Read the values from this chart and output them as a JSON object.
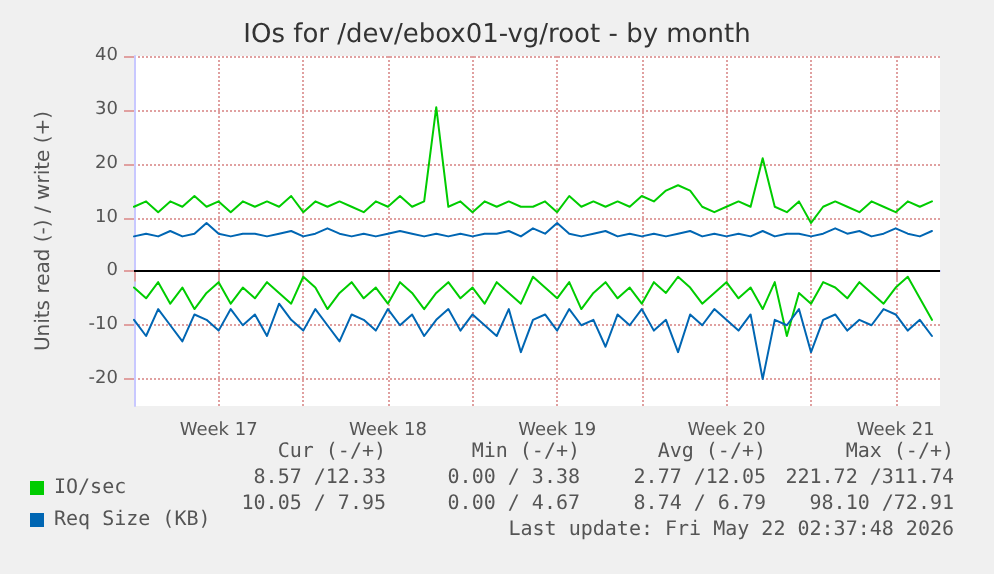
{
  "chart_data": {
    "type": "line",
    "title": "IOs for /dev/ebox01-vg/root - by month",
    "ylabel": "Units read (-) / write (+)",
    "x": [
      "2026-04-20T00:00",
      "2026-04-20T12:00",
      "2026-04-21T00:00",
      "2026-04-21T12:00",
      "2026-04-22T00:00",
      "2026-04-22T12:00",
      "2026-04-23T00:00",
      "2026-04-23T12:00",
      "2026-04-24T00:00",
      "2026-04-24T12:00",
      "2026-04-25T00:00",
      "2026-04-25T12:00",
      "2026-04-26T00:00",
      "2026-04-26T12:00",
      "2026-04-27T00:00",
      "2026-04-27T12:00",
      "2026-04-28T00:00",
      "2026-04-28T12:00",
      "2026-04-29T00:00",
      "2026-04-29T12:00",
      "2026-04-30T00:00",
      "2026-04-30T12:00",
      "2026-05-01T00:00",
      "2026-05-01T12:00",
      "2026-05-02T00:00",
      "2026-05-02T12:00",
      "2026-05-03T00:00",
      "2026-05-03T12:00",
      "2026-05-04T00:00",
      "2026-05-04T12:00",
      "2026-05-05T00:00",
      "2026-05-05T12:00",
      "2026-05-06T00:00",
      "2026-05-06T12:00",
      "2026-05-07T00:00",
      "2026-05-07T12:00",
      "2026-05-08T00:00",
      "2026-05-08T12:00",
      "2026-05-09T00:00",
      "2026-05-09T12:00",
      "2026-05-10T00:00",
      "2026-05-10T12:00",
      "2026-05-11T00:00",
      "2026-05-11T12:00",
      "2026-05-12T00:00",
      "2026-05-12T12:00",
      "2026-05-13T00:00",
      "2026-05-13T12:00",
      "2026-05-14T00:00",
      "2026-05-14T12:00",
      "2026-05-15T00:00",
      "2026-05-15T12:00",
      "2026-05-16T00:00",
      "2026-05-16T12:00",
      "2026-05-17T00:00",
      "2026-05-17T12:00",
      "2026-05-18T00:00",
      "2026-05-18T12:00",
      "2026-05-19T00:00",
      "2026-05-19T12:00",
      "2026-05-20T00:00",
      "2026-05-20T12:00",
      "2026-05-21T00:00",
      "2026-05-21T12:00",
      "2026-05-22T00:00",
      "2026-05-22T12:00",
      "2026-05-23T00:00"
    ],
    "series": [
      {
        "name": "IO/sec",
        "color": "#00cc00",
        "values": [
          12,
          13,
          11,
          13,
          12,
          14,
          12,
          13,
          11,
          13,
          12,
          13,
          12,
          14,
          11,
          13,
          12,
          13,
          12,
          11,
          13,
          12,
          14,
          12,
          13,
          30.5,
          12,
          13,
          11,
          13,
          12,
          13,
          12,
          12,
          13,
          11,
          14,
          12,
          13,
          12,
          13,
          12,
          14,
          13,
          15,
          16,
          15,
          12,
          11,
          12,
          13,
          12,
          21,
          12,
          11,
          13,
          9,
          12,
          13,
          12,
          11,
          13,
          12,
          11,
          13,
          12,
          13
        ]
      },
      {
        "name": "Req Size (KB)",
        "color": "#0066b3",
        "values": [
          6.5,
          7,
          6.5,
          7.5,
          6.5,
          7,
          9,
          7,
          6.5,
          7,
          7,
          6.5,
          7,
          7.5,
          6.5,
          7,
          8,
          7,
          6.5,
          7,
          6.5,
          7,
          7.5,
          7,
          6.5,
          7,
          6.5,
          7,
          6.5,
          7,
          7,
          7.5,
          6.5,
          8,
          7,
          9,
          7,
          6.5,
          7,
          7.5,
          6.5,
          7,
          6.5,
          7,
          6.5,
          7,
          7.5,
          6.5,
          7,
          6.5,
          7,
          6.5,
          7.5,
          6.5,
          7,
          7,
          6.5,
          7,
          8,
          7,
          7.5,
          6.5,
          7,
          8,
          7,
          6.5,
          7.5
        ]
      },
      {
        "color": "#00cc00",
        "values": [
          -3,
          -5,
          -2,
          -6,
          -3,
          -7,
          -4,
          -2,
          -6,
          -3,
          -5,
          -2,
          -4,
          -6,
          -1,
          -3,
          -7,
          -4,
          -2,
          -5,
          -3,
          -6,
          -2,
          -4,
          -7,
          -4,
          -2,
          -5,
          -3,
          -6,
          -2,
          -4,
          -6,
          -1,
          -3,
          -5,
          -2,
          -7,
          -4,
          -2,
          -5,
          -3,
          -6,
          -2,
          -4,
          -1,
          -3,
          -6,
          -4,
          -2,
          -5,
          -3,
          -7,
          -2,
          -12,
          -4,
          -6,
          -2,
          -3,
          -5,
          -2,
          -4,
          -6,
          -3,
          -1,
          -5,
          -9
        ]
      },
      {
        "color": "#0066b3",
        "values": [
          -9,
          -12,
          -7,
          -10,
          -13,
          -8,
          -9,
          -11,
          -7,
          -10,
          -8,
          -12,
          -6,
          -9,
          -11,
          -7,
          -10,
          -13,
          -8,
          -9,
          -11,
          -7,
          -10,
          -8,
          -12,
          -9,
          -7,
          -11,
          -8,
          -10,
          -12,
          -7,
          -15,
          -9,
          -8,
          -11,
          -7,
          -10,
          -9,
          -14,
          -8,
          -10,
          -7,
          -11,
          -9,
          -15,
          -8,
          -10,
          -7,
          -9,
          -11,
          -8,
          -20,
          -9,
          -10,
          -7,
          -15,
          -9,
          -8,
          -11,
          -9,
          -10,
          -7,
          -8,
          -11,
          -9,
          -12
        ]
      }
    ],
    "xlim": [
      "2026-04-20T00:00",
      "2026-05-23T08:00"
    ],
    "xticks": [
      {
        "value": "2026-04-20T00:00",
        "label": null
      },
      {
        "value": "2026-04-23T12:00",
        "label": "Week 17"
      },
      {
        "value": "2026-04-27T00:00",
        "label": null
      },
      {
        "value": "2026-04-30T12:00",
        "label": "Week 18"
      },
      {
        "value": "2026-05-04T00:00",
        "label": null
      },
      {
        "value": "2026-05-07T12:00",
        "label": "Week 19"
      },
      {
        "value": "2026-05-11T00:00",
        "label": null
      },
      {
        "value": "2026-05-14T12:00",
        "label": "Week 20"
      },
      {
        "value": "2026-05-18T00:00",
        "label": null
      },
      {
        "value": "2026-05-21T12:00",
        "label": "Week 21"
      }
    ],
    "ylim": [
      -25,
      40
    ],
    "yticks": [
      -20,
      -10,
      0,
      10,
      20,
      30,
      40
    ],
    "ref_lines": [
      {
        "axis": "y",
        "value": 0,
        "color": "#000000"
      }
    ],
    "grid": true,
    "legend": "bottom left",
    "marker": "none",
    "line_style": "solid",
    "annotations": [
      "Cur (-/+)",
      "Min (-/+)",
      "Avg (-/+)",
      "Max (-/+)",
      "8.57 /12.33",
      "0.00 / 3.38",
      "2.77 /12.05",
      "221.72 /311.74",
      "10.05 / 7.95",
      "0.00 / 4.67",
      "8.74 / 6.79",
      "98.10 /72.91",
      "Last update: Fri May 22 02:37:48 2026"
    ]
  }
}
